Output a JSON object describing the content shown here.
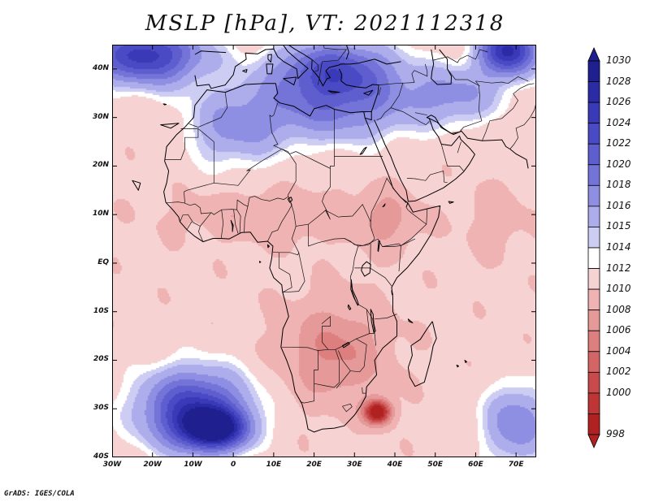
{
  "title": "MSLP [hPa], VT: 2021112318",
  "credit": "GrADS: IGES/COLA",
  "map": {
    "variable": "Mean sea level pressure",
    "units": "hPa",
    "region": "Africa",
    "lon_range": [
      -30,
      75
    ],
    "lat_range": [
      -40,
      45
    ],
    "lat_labels": [
      {
        "value": 40,
        "label": "40N"
      },
      {
        "value": 30,
        "label": "30N"
      },
      {
        "value": 20,
        "label": "20N"
      },
      {
        "value": 10,
        "label": "10N"
      },
      {
        "value": 0,
        "label": "EQ"
      },
      {
        "value": -10,
        "label": "10S"
      },
      {
        "value": -20,
        "label": "20S"
      },
      {
        "value": -30,
        "label": "30S"
      },
      {
        "value": -40,
        "label": "40S"
      }
    ],
    "lon_labels": [
      {
        "value": -30,
        "label": "30W"
      },
      {
        "value": -20,
        "label": "20W"
      },
      {
        "value": -10,
        "label": "10W"
      },
      {
        "value": 0,
        "label": "0"
      },
      {
        "value": 10,
        "label": "10E"
      },
      {
        "value": 20,
        "label": "20E"
      },
      {
        "value": 30,
        "label": "30E"
      },
      {
        "value": 40,
        "label": "40E"
      },
      {
        "value": 50,
        "label": "50E"
      },
      {
        "value": 60,
        "label": "60E"
      },
      {
        "value": 70,
        "label": "70E"
      }
    ]
  },
  "colorbar": {
    "levels": [
      "1030",
      "1028",
      "1026",
      "1024",
      "1022",
      "1020",
      "1018",
      "1016",
      "1015",
      "1014",
      "1012",
      "1010",
      "1008",
      "1006",
      "1004",
      "1002",
      "1000",
      "998"
    ],
    "colors": [
      "#1f1f8f",
      "#2b2ba6",
      "#3a3ab8",
      "#4a4ac4",
      "#5e5ecf",
      "#7373d8",
      "#8e8ee2",
      "#adadec",
      "#cdcdf4",
      "#ffffff",
      "#f6d2d2",
      "#f0b3b3",
      "#e69999",
      "#dd7f7f",
      "#d46565",
      "#c94a4a",
      "#bd3535",
      "#b02222"
    ]
  },
  "pressure_field": {
    "background": 1012.5,
    "features": [
      {
        "name": "azores-high",
        "lon": -22,
        "lat": 43,
        "value": 1027,
        "rx": 14,
        "ry": 6
      },
      {
        "name": "europe-ridge",
        "lon": 25,
        "lat": 40,
        "value": 1023.5,
        "rx": 15,
        "ry": 6
      },
      {
        "name": "saharan-high",
        "lon": 25,
        "lat": 32,
        "value": 1020,
        "rx": 20,
        "ry": 7
      },
      {
        "name": "central-asia-high",
        "lon": 68,
        "lat": 44,
        "value": 1028.5,
        "rx": 7,
        "ry": 5
      },
      {
        "name": "iran-high",
        "lon": 55,
        "lat": 35,
        "value": 1018,
        "rx": 12,
        "ry": 6
      },
      {
        "name": "west-sahara",
        "lon": 0,
        "lat": 28,
        "value": 1018,
        "rx": 12,
        "ry": 8
      },
      {
        "name": "saint-helena-high",
        "lon": -10,
        "lat": -30,
        "value": 1026.5,
        "rx": 13,
        "ry": 8
      },
      {
        "name": "south-atlantic-core",
        "lon": -5,
        "lat": -34,
        "value": 1028.5,
        "rx": 8,
        "ry": 4
      },
      {
        "name": "mascarene-high",
        "lon": 70,
        "lat": -33,
        "value": 1020,
        "rx": 8,
        "ry": 8
      },
      {
        "name": "mozambique-low",
        "lon": 35.5,
        "lat": -30.5,
        "value": 996,
        "rx": 3.2,
        "ry": 2.4
      },
      {
        "name": "southern-africa-trough",
        "lon": 25,
        "lat": -18,
        "value": 1007.5,
        "rx": 12,
        "ry": 10
      },
      {
        "name": "sahel-trough",
        "lon": 10,
        "lat": 10,
        "value": 1010,
        "rx": 22,
        "ry": 5
      },
      {
        "name": "east-africa-trough",
        "lon": 38,
        "lat": 9,
        "value": 1009.5,
        "rx": 7,
        "ry": 6
      },
      {
        "name": "arabian-sea-low",
        "lon": 65,
        "lat": 9,
        "value": 1011,
        "rx": 8,
        "ry": 7
      }
    ]
  }
}
